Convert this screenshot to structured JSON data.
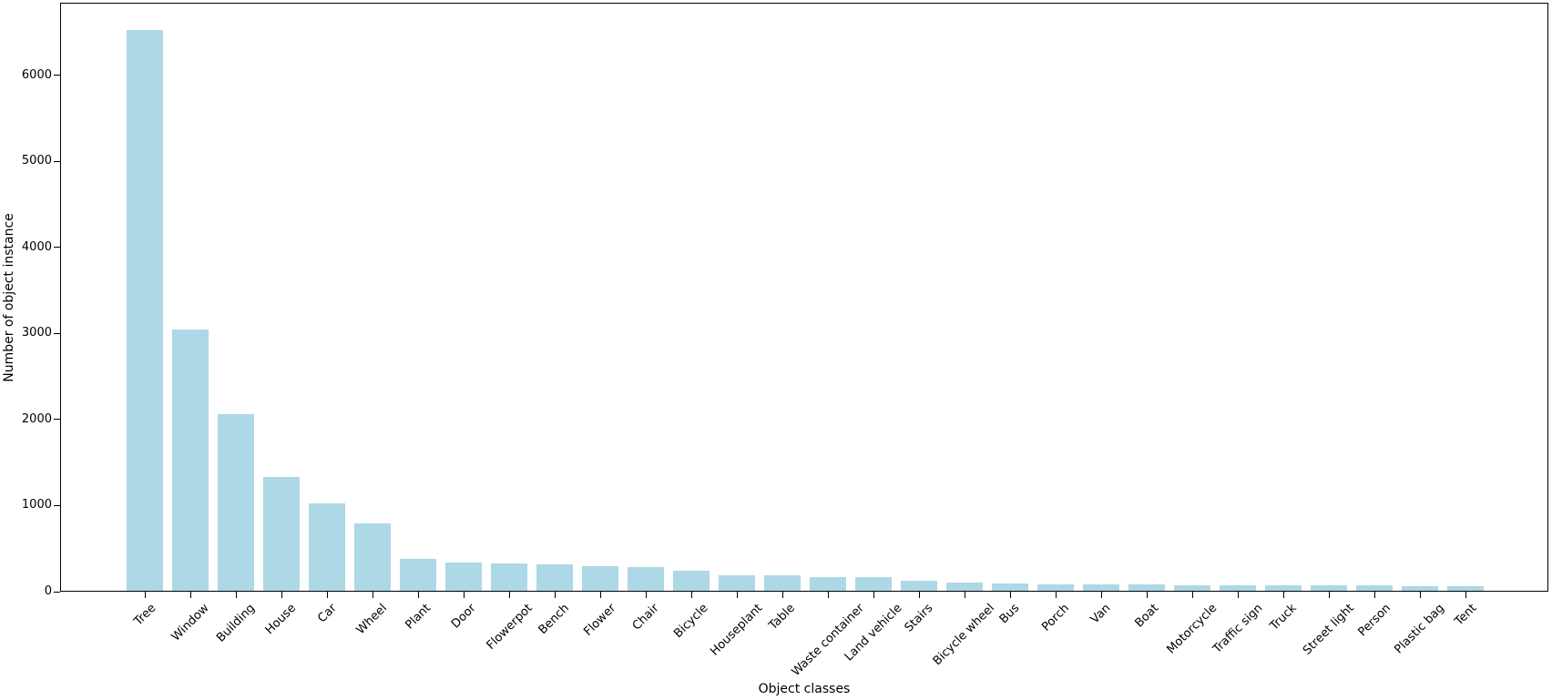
{
  "chart_data": {
    "type": "bar",
    "title": "",
    "xlabel": "Object classes",
    "ylabel": "Number of object instance",
    "categories": [
      "Tree",
      "Window",
      "Building",
      "House",
      "Car",
      "Wheel",
      "Plant",
      "Door",
      "Flowerpot",
      "Bench",
      "Flower",
      "Chair",
      "Bicycle",
      "Houseplant",
      "Table",
      "Waste container",
      "Land vehicle",
      "Stairs",
      "Bicycle wheel",
      "Bus",
      "Porch",
      "Van",
      "Boat",
      "Motorcycle",
      "Traffic sign",
      "Truck",
      "Street light",
      "Person",
      "Plastic bag",
      "Tent"
    ],
    "values": [
      6535,
      3050,
      2060,
      1330,
      1015,
      790,
      375,
      330,
      315,
      305,
      290,
      280,
      235,
      185,
      180,
      160,
      160,
      115,
      100,
      80,
      70,
      70,
      70,
      60,
      60,
      60,
      60,
      60,
      55,
      50
    ],
    "yticks": [
      0,
      1000,
      2000,
      3000,
      4000,
      5000,
      6000
    ],
    "ylim": [
      0,
      6843
    ],
    "bar_color": "#ADD8E6",
    "grid": false,
    "legend_position": "none",
    "x_tick_rotation_deg": 45
  }
}
